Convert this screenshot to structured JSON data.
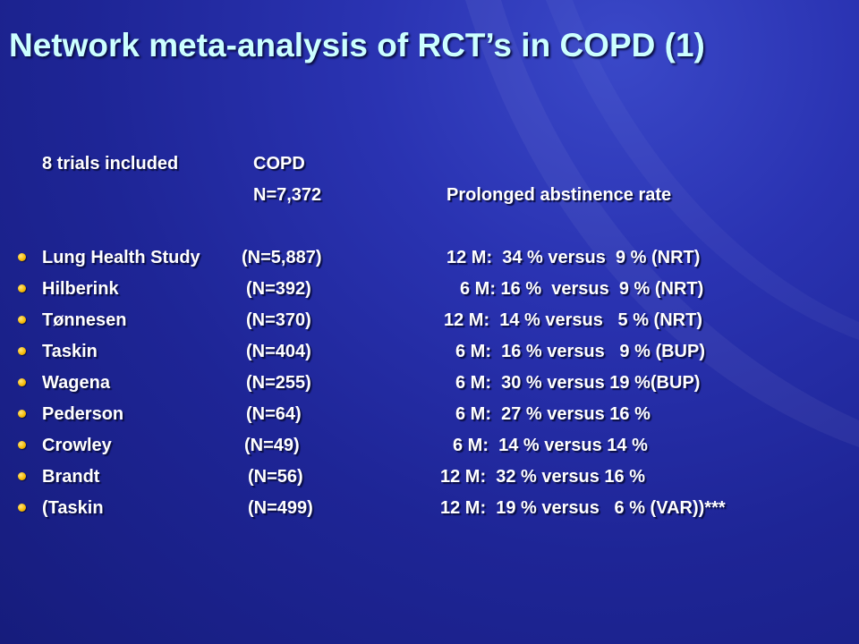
{
  "slide": {
    "title": "Network meta-analysis of RCT’s in COPD (1)"
  },
  "header": {
    "line1_left": "8 trials included",
    "line1_mid": "COPD",
    "line2_mid": "N=7,372",
    "line2_right": "Prolonged abstinence rate"
  },
  "trials": [
    {
      "name": "Lung Health Study",
      "n": "(N=5,887)",
      "result": "12 M:  34 % versus  9 % (NRT)"
    },
    {
      "name": "Hilberink",
      "n": "(N=392)",
      "result": "6 M: 16 %  versus  9 % (NRT)"
    },
    {
      "name": "Tønnesen",
      "n": "(N=370)",
      "result": "12 M:  14 % versus   5 % (NRT)"
    },
    {
      "name": "Taskin",
      "n": "(N=404)",
      "result": "6 M:  16 % versus   9 % (BUP)"
    },
    {
      "name": "Wagena",
      "n": "(N=255)",
      "result": "6 M:  30 % versus 19 %(BUP)"
    },
    {
      "name": "Pederson",
      "n": "(N=64)",
      "result": "6 M:  27 % versus 16 %"
    },
    {
      "name": "Crowley",
      "n": "(N=49)",
      "result": "6 M:  14 % versus 14 %"
    },
    {
      "name": "Brandt",
      "n": "(N=56)",
      "result": "12 M:  32 % versus 16 %"
    },
    {
      "name": "(Taskin",
      "n": "(N=499)",
      "result": "12 M:  19 % versus   6 % (VAR))***"
    }
  ],
  "colors": {
    "background": "#1e2596",
    "title": "#ccffff",
    "text": "#ffffff",
    "bullet": "#f5b800"
  }
}
